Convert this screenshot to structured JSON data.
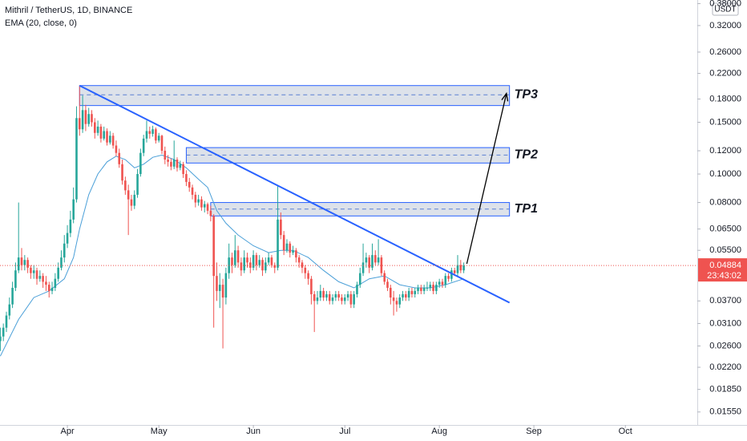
{
  "chart_data": {
    "type": "candlestick",
    "title": "Mithril / TetherUS, 1D, BINANCE",
    "currency": "USDT",
    "up_color": "#26a69a",
    "down_color": "#ef5350",
    "x": [
      69,
      70,
      71,
      72,
      73,
      74,
      75,
      76,
      77,
      78,
      79,
      80,
      81,
      82,
      83,
      84,
      85,
      86,
      87,
      88,
      89,
      90,
      91,
      92,
      93,
      94,
      95,
      96,
      97,
      98,
      99,
      100,
      101,
      102,
      103,
      104,
      105,
      106,
      107,
      108,
      109,
      110,
      111,
      112,
      113,
      114,
      115,
      116,
      117,
      118,
      119,
      120,
      121,
      122,
      123,
      124,
      125,
      126,
      127,
      128,
      129,
      130,
      131,
      132,
      133,
      134,
      135,
      136,
      137,
      138,
      139,
      140,
      141,
      142,
      143,
      144,
      145,
      146,
      147,
      148,
      149,
      150,
      151,
      152,
      153,
      154,
      155,
      156,
      157,
      158,
      159,
      160,
      161,
      162,
      163,
      164,
      165,
      166,
      167,
      168,
      169,
      170,
      171,
      172,
      173,
      174,
      175,
      176,
      177,
      178,
      179,
      180,
      181,
      182,
      183,
      184,
      185,
      186,
      187,
      188,
      189,
      190,
      191,
      192,
      193,
      194,
      195,
      196,
      197,
      198,
      199,
      200,
      201,
      202,
      203,
      204,
      205,
      206,
      207,
      208,
      209,
      210,
      211,
      212,
      213,
      214,
      215,
      216,
      217,
      218,
      219,
      220,
      221
    ],
    "candles": [
      [
        0.027,
        0.03,
        0.025,
        0.028
      ],
      [
        0.028,
        0.031,
        0.027,
        0.03
      ],
      [
        0.03,
        0.034,
        0.029,
        0.033
      ],
      [
        0.033,
        0.038,
        0.032,
        0.036
      ],
      [
        0.036,
        0.043,
        0.035,
        0.041
      ],
      [
        0.041,
        0.05,
        0.04,
        0.047
      ],
      [
        0.047,
        0.08,
        0.046,
        0.052
      ],
      [
        0.052,
        0.056,
        0.047,
        0.049
      ],
      [
        0.049,
        0.053,
        0.047,
        0.051
      ],
      [
        0.051,
        0.052,
        0.046,
        0.048
      ],
      [
        0.048,
        0.049,
        0.044,
        0.046
      ],
      [
        0.046,
        0.049,
        0.044,
        0.047
      ],
      [
        0.047,
        0.048,
        0.042,
        0.044
      ],
      [
        0.044,
        0.047,
        0.043,
        0.045
      ],
      [
        0.045,
        0.046,
        0.041,
        0.043
      ],
      [
        0.043,
        0.045,
        0.04,
        0.042
      ],
      [
        0.042,
        0.043,
        0.038,
        0.04
      ],
      [
        0.04,
        0.043,
        0.039,
        0.041
      ],
      [
        0.041,
        0.046,
        0.04,
        0.044
      ],
      [
        0.044,
        0.05,
        0.043,
        0.048
      ],
      [
        0.048,
        0.055,
        0.047,
        0.052
      ],
      [
        0.052,
        0.062,
        0.05,
        0.058
      ],
      [
        0.058,
        0.067,
        0.056,
        0.063
      ],
      [
        0.063,
        0.075,
        0.061,
        0.07
      ],
      [
        0.07,
        0.09,
        0.068,
        0.082
      ],
      [
        0.082,
        0.17,
        0.08,
        0.155
      ],
      [
        0.155,
        0.2,
        0.135,
        0.142
      ],
      [
        0.142,
        0.185,
        0.138,
        0.165
      ],
      [
        0.165,
        0.172,
        0.14,
        0.148
      ],
      [
        0.148,
        0.168,
        0.145,
        0.16
      ],
      [
        0.16,
        0.165,
        0.145,
        0.15
      ],
      [
        0.15,
        0.155,
        0.132,
        0.138
      ],
      [
        0.138,
        0.152,
        0.135,
        0.145
      ],
      [
        0.145,
        0.148,
        0.128,
        0.132
      ],
      [
        0.132,
        0.145,
        0.13,
        0.14
      ],
      [
        0.14,
        0.143,
        0.125,
        0.128
      ],
      [
        0.128,
        0.14,
        0.126,
        0.135
      ],
      [
        0.135,
        0.138,
        0.122,
        0.125
      ],
      [
        0.125,
        0.13,
        0.115,
        0.118
      ],
      [
        0.118,
        0.122,
        0.105,
        0.108
      ],
      [
        0.108,
        0.112,
        0.092,
        0.095
      ],
      [
        0.095,
        0.098,
        0.085,
        0.088
      ],
      [
        0.088,
        0.092,
        0.062,
        0.082
      ],
      [
        0.082,
        0.085,
        0.075,
        0.078
      ],
      [
        0.078,
        0.088,
        0.076,
        0.085
      ],
      [
        0.085,
        0.104,
        0.083,
        0.1
      ],
      [
        0.1,
        0.122,
        0.098,
        0.118
      ],
      [
        0.118,
        0.136,
        0.115,
        0.132
      ],
      [
        0.132,
        0.152,
        0.128,
        0.14
      ],
      [
        0.14,
        0.145,
        0.132,
        0.137
      ],
      [
        0.137,
        0.146,
        0.134,
        0.142
      ],
      [
        0.142,
        0.144,
        0.127,
        0.13
      ],
      [
        0.13,
        0.138,
        0.128,
        0.135
      ],
      [
        0.135,
        0.136,
        0.117,
        0.12
      ],
      [
        0.12,
        0.124,
        0.108,
        0.112
      ],
      [
        0.112,
        0.116,
        0.106,
        0.11
      ],
      [
        0.11,
        0.113,
        0.103,
        0.106
      ],
      [
        0.106,
        0.13,
        0.104,
        0.112
      ],
      [
        0.112,
        0.114,
        0.102,
        0.105
      ],
      [
        0.105,
        0.111,
        0.103,
        0.108
      ],
      [
        0.108,
        0.11,
        0.097,
        0.1
      ],
      [
        0.1,
        0.103,
        0.091,
        0.094
      ],
      [
        0.094,
        0.097,
        0.087,
        0.09
      ],
      [
        0.09,
        0.092,
        0.082,
        0.085
      ],
      [
        0.085,
        0.087,
        0.077,
        0.08
      ],
      [
        0.08,
        0.085,
        0.078,
        0.082
      ],
      [
        0.082,
        0.084,
        0.075,
        0.077
      ],
      [
        0.077,
        0.081,
        0.074,
        0.079
      ],
      [
        0.079,
        0.08,
        0.073,
        0.075
      ],
      [
        0.075,
        0.078,
        0.069,
        0.072
      ],
      [
        0.072,
        0.073,
        0.03,
        0.045
      ],
      [
        0.045,
        0.05,
        0.037,
        0.04
      ],
      [
        0.04,
        0.046,
        0.035,
        0.042
      ],
      [
        0.042,
        0.044,
        0.0255,
        0.038
      ],
      [
        0.038,
        0.048,
        0.036,
        0.046
      ],
      [
        0.046,
        0.058,
        0.044,
        0.052
      ],
      [
        0.052,
        0.054,
        0.046,
        0.049
      ],
      [
        0.049,
        0.062,
        0.048,
        0.055
      ],
      [
        0.055,
        0.057,
        0.048,
        0.05
      ],
      [
        0.05,
        0.052,
        0.045,
        0.047
      ],
      [
        0.047,
        0.055,
        0.046,
        0.052
      ],
      [
        0.052,
        0.054,
        0.048,
        0.05
      ],
      [
        0.05,
        0.052,
        0.046,
        0.048
      ],
      [
        0.048,
        0.055,
        0.047,
        0.053
      ],
      [
        0.053,
        0.054,
        0.047,
        0.049
      ],
      [
        0.049,
        0.053,
        0.048,
        0.051
      ],
      [
        0.051,
        0.052,
        0.045,
        0.047
      ],
      [
        0.047,
        0.052,
        0.046,
        0.05
      ],
      [
        0.05,
        0.054,
        0.049,
        0.052
      ],
      [
        0.052,
        0.053,
        0.048,
        0.049
      ],
      [
        0.049,
        0.05,
        0.046,
        0.048
      ],
      [
        0.048,
        0.091,
        0.047,
        0.07
      ],
      [
        0.07,
        0.074,
        0.06,
        0.062
      ],
      [
        0.062,
        0.064,
        0.053,
        0.055
      ],
      [
        0.055,
        0.06,
        0.054,
        0.058
      ],
      [
        0.058,
        0.059,
        0.052,
        0.054
      ],
      [
        0.054,
        0.057,
        0.053,
        0.055
      ],
      [
        0.055,
        0.056,
        0.05,
        0.052
      ],
      [
        0.052,
        0.053,
        0.048,
        0.05
      ],
      [
        0.05,
        0.051,
        0.046,
        0.048
      ],
      [
        0.048,
        0.049,
        0.044,
        0.046
      ],
      [
        0.046,
        0.047,
        0.042,
        0.044
      ],
      [
        0.044,
        0.045,
        0.036,
        0.039
      ],
      [
        0.039,
        0.04,
        0.029,
        0.037
      ],
      [
        0.037,
        0.04,
        0.036,
        0.038
      ],
      [
        0.038,
        0.042,
        0.037,
        0.04
      ],
      [
        0.04,
        0.041,
        0.037,
        0.038
      ],
      [
        0.038,
        0.04,
        0.037,
        0.039
      ],
      [
        0.039,
        0.04,
        0.036,
        0.037
      ],
      [
        0.037,
        0.039,
        0.036,
        0.038
      ],
      [
        0.038,
        0.04,
        0.037,
        0.039
      ],
      [
        0.039,
        0.04,
        0.037,
        0.038
      ],
      [
        0.038,
        0.039,
        0.036,
        0.037
      ],
      [
        0.037,
        0.039,
        0.036,
        0.038
      ],
      [
        0.038,
        0.04,
        0.037,
        0.039
      ],
      [
        0.039,
        0.04,
        0.035,
        0.036
      ],
      [
        0.036,
        0.04,
        0.035,
        0.039
      ],
      [
        0.039,
        0.043,
        0.038,
        0.042
      ],
      [
        0.042,
        0.048,
        0.041,
        0.046
      ],
      [
        0.046,
        0.058,
        0.045,
        0.05
      ],
      [
        0.05,
        0.054,
        0.048,
        0.052
      ],
      [
        0.052,
        0.053,
        0.046,
        0.048
      ],
      [
        0.048,
        0.058,
        0.047,
        0.053
      ],
      [
        0.053,
        0.055,
        0.049,
        0.05
      ],
      [
        0.05,
        0.06,
        0.049,
        0.052
      ],
      [
        0.052,
        0.053,
        0.045,
        0.046
      ],
      [
        0.046,
        0.047,
        0.042,
        0.043
      ],
      [
        0.043,
        0.044,
        0.04,
        0.041
      ],
      [
        0.041,
        0.042,
        0.036,
        0.038
      ],
      [
        0.038,
        0.04,
        0.033,
        0.037
      ],
      [
        0.037,
        0.038,
        0.034,
        0.036
      ],
      [
        0.036,
        0.039,
        0.035,
        0.038
      ],
      [
        0.038,
        0.04,
        0.037,
        0.039
      ],
      [
        0.039,
        0.04,
        0.037,
        0.038
      ],
      [
        0.038,
        0.041,
        0.037,
        0.04
      ],
      [
        0.04,
        0.041,
        0.038,
        0.039
      ],
      [
        0.039,
        0.041,
        0.038,
        0.04
      ],
      [
        0.04,
        0.042,
        0.039,
        0.041
      ],
      [
        0.041,
        0.042,
        0.039,
        0.04
      ],
      [
        0.04,
        0.042,
        0.039,
        0.041
      ],
      [
        0.041,
        0.043,
        0.04,
        0.041
      ],
      [
        0.041,
        0.043,
        0.04,
        0.042
      ],
      [
        0.042,
        0.043,
        0.039,
        0.04
      ],
      [
        0.04,
        0.043,
        0.039,
        0.042
      ],
      [
        0.042,
        0.044,
        0.041,
        0.043
      ],
      [
        0.043,
        0.044,
        0.041,
        0.042
      ],
      [
        0.042,
        0.046,
        0.041,
        0.045
      ],
      [
        0.045,
        0.046,
        0.043,
        0.044
      ],
      [
        0.044,
        0.048,
        0.043,
        0.047
      ],
      [
        0.047,
        0.048,
        0.045,
        0.046
      ],
      [
        0.046,
        0.053,
        0.045,
        0.049
      ],
      [
        0.049,
        0.051,
        0.046,
        0.047
      ],
      [
        0.047,
        0.05,
        0.046,
        0.04884
      ]
    ],
    "countdown": "23:43:02",
    "series": [
      {
        "name": "EMA (20, close, 0)",
        "color": "#4a9fd8",
        "x": [
          69,
          75,
          80,
          85,
          90,
          93,
          95,
          98,
          101,
          104,
          107,
          110,
          113,
          116,
          119,
          122,
          126,
          130,
          134,
          137,
          140,
          143,
          147,
          152,
          157,
          161,
          165,
          170,
          175,
          180,
          185,
          190,
          195,
          200,
          205,
          210,
          215,
          221
        ],
        "values": [
          0.024,
          0.032,
          0.038,
          0.04,
          0.044,
          0.052,
          0.065,
          0.085,
          0.1,
          0.11,
          0.115,
          0.112,
          0.105,
          0.108,
          0.114,
          0.116,
          0.112,
          0.105,
          0.096,
          0.09,
          0.075,
          0.068,
          0.062,
          0.057,
          0.054,
          0.055,
          0.055,
          0.052,
          0.047,
          0.043,
          0.041,
          0.044,
          0.045,
          0.042,
          0.041,
          0.041,
          0.042,
          0.044
        ]
      }
    ],
    "zones": [
      {
        "label": "TP3",
        "from": 95,
        "to": 236,
        "low": 0.171,
        "high": 0.2,
        "mid": 0.186
      },
      {
        "label": "TP2",
        "from": 130,
        "to": 236,
        "low": 0.109,
        "high": 0.123,
        "mid": 0.116
      },
      {
        "label": "TP1",
        "from": 138,
        "to": 236,
        "low": 0.072,
        "high": 0.08,
        "mid": 0.076
      }
    ],
    "trendline": {
      "x": [
        95,
        236
      ],
      "values": [
        0.2,
        0.0365
      ]
    },
    "arrow": {
      "x": [
        222,
        235
      ],
      "values": [
        0.0495,
        0.188
      ]
    },
    "log_scale": true,
    "xlim": [
      68.9,
      297.6
    ],
    "ylim": [
      0.014,
      0.391
    ],
    "xticks": [
      {
        "value": 91,
        "label": "Apr"
      },
      {
        "value": 121,
        "label": "May"
      },
      {
        "value": 152,
        "label": "Jun"
      },
      {
        "value": 182,
        "label": "Jul"
      },
      {
        "value": 213,
        "label": "Aug"
      },
      {
        "value": 244,
        "label": "Sep"
      },
      {
        "value": 274,
        "label": "Oct"
      }
    ],
    "yticks": [
      {
        "value": 0.38,
        "label": "0.38000"
      },
      {
        "value": 0.32,
        "label": "0.32000"
      },
      {
        "value": 0.26,
        "label": "0.26000"
      },
      {
        "value": 0.22,
        "label": "0.22000"
      },
      {
        "value": 0.18,
        "label": "0.18000"
      },
      {
        "value": 0.15,
        "label": "0.15000"
      },
      {
        "value": 0.12,
        "label": "0.12000"
      },
      {
        "value": 0.1,
        "label": "0.10000"
      },
      {
        "value": 0.08,
        "label": "0.08000"
      },
      {
        "value": 0.065,
        "label": "0.06500"
      },
      {
        "value": 0.055,
        "label": "0.05500"
      },
      {
        "value": 0.037,
        "label": "0.03700"
      },
      {
        "value": 0.031,
        "label": "0.03100"
      },
      {
        "value": 0.026,
        "label": "0.02600"
      },
      {
        "value": 0.022,
        "label": "0.02200"
      },
      {
        "value": 0.0185,
        "label": "0.01850"
      },
      {
        "value": 0.0155,
        "label": "0.01550"
      }
    ]
  }
}
